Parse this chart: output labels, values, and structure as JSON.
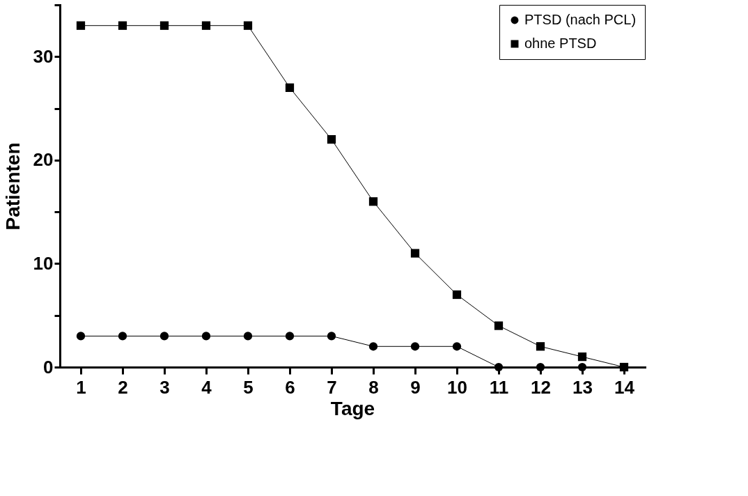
{
  "chart_data": {
    "type": "line",
    "xlabel": "Tage",
    "ylabel": "Patienten",
    "x": [
      1,
      2,
      3,
      4,
      5,
      6,
      7,
      8,
      9,
      10,
      11,
      12,
      13,
      14
    ],
    "xlim": [
      0.5,
      14.5
    ],
    "xticks": [
      1,
      2,
      3,
      4,
      5,
      6,
      7,
      8,
      9,
      10,
      11,
      12,
      13,
      14
    ],
    "ylim": [
      0,
      35
    ],
    "yticks": [
      0,
      {
        "value": 5,
        "label": null
      },
      10,
      {
        "value": 15,
        "label": null
      },
      20,
      {
        "value": 25,
        "label": null
      },
      30,
      {
        "value": 35,
        "label": null
      }
    ],
    "series": [
      {
        "name": "PTSD (nach PCL)",
        "color": "#000000",
        "marker": "circle",
        "values": [
          3,
          3,
          3,
          3,
          3,
          3,
          3,
          2,
          2,
          2,
          0,
          0,
          0,
          0
        ]
      },
      {
        "name": "ohne PTSD",
        "color": "#000000",
        "marker": "square",
        "values": [
          33,
          33,
          33,
          33,
          33,
          27,
          22,
          16,
          11,
          7,
          4,
          2,
          1,
          0
        ]
      }
    ],
    "legend": "top right",
    "grid": false,
    "line_style": "solid"
  }
}
